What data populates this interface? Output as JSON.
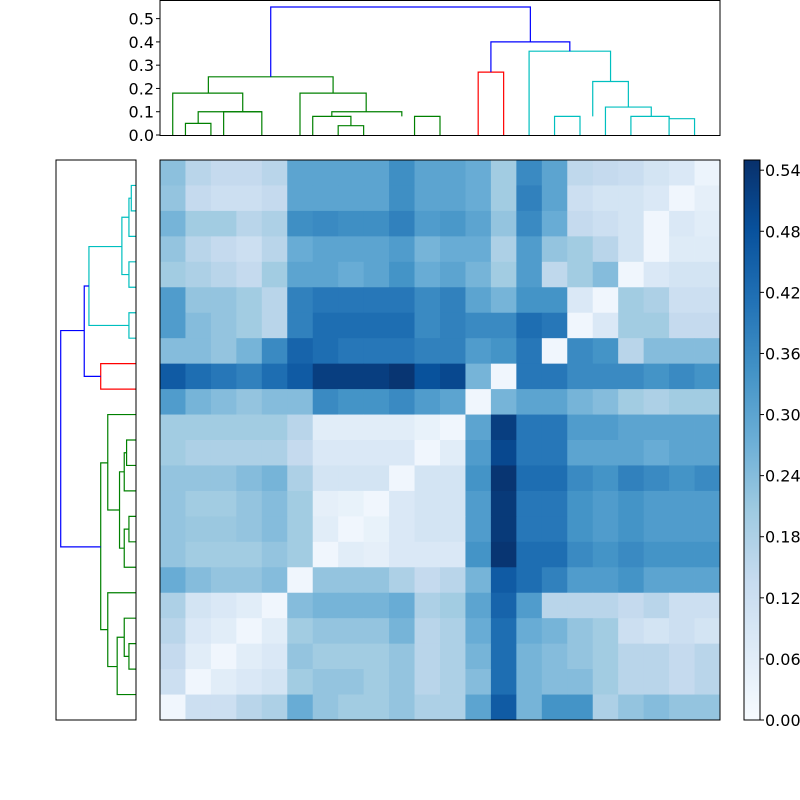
{
  "chart_data": {
    "type": "heatmap",
    "title": "",
    "colormap": "Blues",
    "n": 22,
    "top_dendrogram": {
      "axis_range": [
        0,
        0.58
      ],
      "ticks": [
        "0.0",
        "0.1",
        "0.2",
        "0.3",
        "0.4",
        "0.5"
      ],
      "tick_values": [
        0,
        0.1,
        0.2,
        0.3,
        0.4,
        0.5
      ],
      "links": [
        {
          "x": [
            0.5,
            0.5,
            1.5,
            1.5
          ],
          "y": [
            0,
            0.05,
            0.05,
            0
          ],
          "color": "#008000"
        },
        {
          "x": [
            2,
            2,
            3.5,
            3.5
          ],
          "y": [
            0,
            0.1,
            0.1,
            0
          ],
          "color": "#008000"
        },
        {
          "x": [
            3.5,
            3.5,
            1.0,
            1.0
          ],
          "y": [
            0.1,
            0.1,
            0.1,
            0.05
          ],
          "color": "#008000"
        },
        {
          "x": [
            0,
            0,
            2.75,
            2.75
          ],
          "y": [
            0,
            0.18,
            0.18,
            0.1
          ],
          "color": "#008000"
        },
        {
          "x": [
            6.5,
            6.5,
            7.5,
            7.5
          ],
          "y": [
            0,
            0.04,
            0.04,
            0
          ],
          "color": "#008000"
        },
        {
          "x": [
            5.5,
            5.5,
            7.0,
            7.0
          ],
          "y": [
            0,
            0.08,
            0.08,
            0.04
          ],
          "color": "#008000"
        },
        {
          "x": [
            9.5,
            9.5,
            10.5,
            10.5
          ],
          "y": [
            0,
            0.08,
            0.08,
            0
          ],
          "color": "#008000"
        },
        {
          "x": [
            6.25,
            6.25,
            9.0,
            9.0
          ],
          "y": [
            0.08,
            0.1,
            0.1,
            0.08
          ],
          "color": "#008000"
        },
        {
          "x": [
            5,
            5,
            7.6,
            7.6
          ],
          "y": [
            0,
            0.18,
            0.18,
            0.1
          ],
          "color": "#008000"
        },
        {
          "x": [
            1.4,
            1.4,
            6.3,
            6.3
          ],
          "y": [
            0.18,
            0.25,
            0.25,
            0.18
          ],
          "color": "#008000"
        },
        {
          "x": [
            12,
            12,
            13,
            13
          ],
          "y": [
            0,
            0.27,
            0.27,
            0
          ],
          "color": "#ff0000"
        },
        {
          "x": [
            15,
            15,
            16,
            16
          ],
          "y": [
            0,
            0.08,
            0.08,
            0
          ],
          "color": "#00bfbf"
        },
        {
          "x": [
            18,
            18,
            19.5,
            19.5
          ],
          "y": [
            0,
            0.08,
            0.08,
            0
          ],
          "color": "#00bfbf"
        },
        {
          "x": [
            19.5,
            19.5,
            20.5,
            20.5
          ],
          "y": [
            0.08,
            0.07,
            0.07,
            0
          ],
          "color": "#00bfbf"
        },
        {
          "x": [
            17,
            17,
            18.8,
            18.8
          ],
          "y": [
            0,
            0.12,
            0.12,
            0.08
          ],
          "color": "#00bfbf"
        },
        {
          "x": [
            16.5,
            16.5,
            17.9,
            17.9
          ],
          "y": [
            0.08,
            0.23,
            0.23,
            0.12
          ],
          "color": "#00bfbf"
        },
        {
          "x": [
            14,
            14,
            17.2,
            17.2
          ],
          "y": [
            0,
            0.36,
            0.36,
            0.23
          ],
          "color": "#00bfbf"
        },
        {
          "x": [
            12.5,
            12.5,
            15.6,
            15.6
          ],
          "y": [
            0.27,
            0.4,
            0.4,
            0.36
          ],
          "color": "#0000ff"
        },
        {
          "x": [
            3.85,
            3.85,
            14.05,
            14.05
          ],
          "y": [
            0.25,
            0.55,
            0.55,
            0.4
          ],
          "color": "#0000ff"
        }
      ]
    },
    "left_dendrogram": {
      "links": [
        {
          "y": [
            0.5,
            0.5,
            1.5,
            1.5
          ],
          "d": [
            0,
            0.02,
            0.02,
            0
          ],
          "color": "#00bfbf"
        },
        {
          "y": [
            1.0,
            1.0,
            2.5,
            2.5
          ],
          "d": [
            0.02,
            0.03,
            0.03,
            0
          ],
          "color": "#00bfbf"
        },
        {
          "y": [
            3.5,
            3.5,
            4.5,
            4.5
          ],
          "d": [
            0,
            0.03,
            0.03,
            0
          ],
          "color": "#00bfbf"
        },
        {
          "y": [
            1.75,
            1.75,
            4.0,
            4.0
          ],
          "d": [
            0.03,
            0.06,
            0.06,
            0.03
          ],
          "color": "#00bfbf"
        },
        {
          "y": [
            5.5,
            5.5,
            6.5,
            6.5
          ],
          "d": [
            0,
            0.03,
            0.03,
            0
          ],
          "color": "#00bfbf"
        },
        {
          "y": [
            2.9,
            2.9,
            6.0,
            6.0
          ],
          "d": [
            0.06,
            0.2,
            0.2,
            0.03
          ],
          "color": "#00bfbf"
        },
        {
          "y": [
            7.5,
            7.5,
            8.5,
            8.5
          ],
          "d": [
            0,
            0.15,
            0.15,
            0
          ],
          "color": "#ff0000"
        },
        {
          "y": [
            4.45,
            4.45,
            8.0,
            8.0
          ],
          "d": [
            0.2,
            0.22,
            0.22,
            0.15
          ],
          "color": "#0000ff"
        },
        {
          "y": [
            10.5,
            10.5,
            11.5,
            11.5
          ],
          "d": [
            0,
            0.04,
            0.04,
            0
          ],
          "color": "#008000"
        },
        {
          "y": [
            11.0,
            11.0,
            12.5,
            12.5
          ],
          "d": [
            0.04,
            0.05,
            0.05,
            0
          ],
          "color": "#008000"
        },
        {
          "y": [
            13.5,
            13.5,
            14.5,
            14.5
          ],
          "d": [
            0,
            0.03,
            0.03,
            0
          ],
          "color": "#008000"
        },
        {
          "y": [
            14.0,
            14.0,
            15.5,
            15.5
          ],
          "d": [
            0.03,
            0.05,
            0.05,
            0
          ],
          "color": "#008000"
        },
        {
          "y": [
            11.75,
            11.75,
            14.75,
            14.75
          ],
          "d": [
            0.05,
            0.07,
            0.07,
            0.05
          ],
          "color": "#008000"
        },
        {
          "y": [
            9.5,
            9.5,
            13.25,
            13.25
          ],
          "d": [
            0,
            0.12,
            0.12,
            0.07
          ],
          "color": "#008000"
        },
        {
          "y": [
            18.5,
            18.5,
            19.5,
            19.5
          ],
          "d": [
            0,
            0.03,
            0.03,
            0
          ],
          "color": "#008000"
        },
        {
          "y": [
            17.5,
            17.5,
            19.0,
            19.0
          ],
          "d": [
            0,
            0.05,
            0.05,
            0.03
          ],
          "color": "#008000"
        },
        {
          "y": [
            18.25,
            18.25,
            20.5,
            20.5
          ],
          "d": [
            0.05,
            0.08,
            0.08,
            0
          ],
          "color": "#008000"
        },
        {
          "y": [
            16.5,
            16.5,
            19.4,
            19.4
          ],
          "d": [
            0,
            0.12,
            0.12,
            0.08
          ],
          "color": "#008000"
        },
        {
          "y": [
            11.4,
            11.4,
            17.95,
            17.95
          ],
          "d": [
            0.12,
            0.15,
            0.15,
            0.12
          ],
          "color": "#008000"
        },
        {
          "y": [
            6.2,
            6.2,
            14.7,
            14.7
          ],
          "d": [
            0.22,
            0.32,
            0.32,
            0.15
          ],
          "color": "#0000ff"
        }
      ]
    },
    "matrix": [
      [
        0.23,
        0.16,
        0.14,
        0.14,
        0.16,
        0.3,
        0.3,
        0.3,
        0.3,
        0.35,
        0.3,
        0.3,
        0.28,
        0.2,
        0.36,
        0.3,
        0.15,
        0.14,
        0.13,
        0.1,
        0.08,
        0.03
      ],
      [
        0.22,
        0.14,
        0.12,
        0.12,
        0.14,
        0.3,
        0.3,
        0.3,
        0.3,
        0.35,
        0.3,
        0.3,
        0.28,
        0.2,
        0.38,
        0.3,
        0.12,
        0.1,
        0.1,
        0.08,
        0.02,
        0.05
      ],
      [
        0.26,
        0.2,
        0.2,
        0.16,
        0.18,
        0.35,
        0.36,
        0.35,
        0.35,
        0.38,
        0.32,
        0.33,
        0.3,
        0.22,
        0.36,
        0.28,
        0.14,
        0.12,
        0.1,
        0.02,
        0.08,
        0.06
      ],
      [
        0.22,
        0.16,
        0.14,
        0.12,
        0.16,
        0.28,
        0.3,
        0.3,
        0.3,
        0.32,
        0.26,
        0.28,
        0.28,
        0.18,
        0.32,
        0.22,
        0.2,
        0.16,
        0.1,
        0.02,
        0.07,
        0.07
      ],
      [
        0.2,
        0.18,
        0.16,
        0.14,
        0.2,
        0.3,
        0.3,
        0.28,
        0.3,
        0.34,
        0.28,
        0.3,
        0.26,
        0.2,
        0.32,
        0.15,
        0.2,
        0.24,
        0.02,
        0.08,
        0.1,
        0.1
      ],
      [
        0.32,
        0.22,
        0.22,
        0.2,
        0.16,
        0.38,
        0.4,
        0.4,
        0.4,
        0.4,
        0.36,
        0.38,
        0.3,
        0.26,
        0.34,
        0.34,
        0.08,
        0.02,
        0.2,
        0.18,
        0.12,
        0.12
      ],
      [
        0.32,
        0.24,
        0.22,
        0.2,
        0.16,
        0.38,
        0.42,
        0.42,
        0.42,
        0.42,
        0.36,
        0.38,
        0.36,
        0.36,
        0.42,
        0.4,
        0.02,
        0.08,
        0.2,
        0.2,
        0.14,
        0.14
      ],
      [
        0.24,
        0.24,
        0.22,
        0.26,
        0.36,
        0.44,
        0.42,
        0.4,
        0.4,
        0.4,
        0.38,
        0.38,
        0.32,
        0.34,
        0.4,
        0.02,
        0.36,
        0.34,
        0.16,
        0.24,
        0.24,
        0.24
      ],
      [
        0.46,
        0.42,
        0.4,
        0.38,
        0.42,
        0.46,
        0.52,
        0.52,
        0.52,
        0.54,
        0.48,
        0.5,
        0.26,
        0.02,
        0.4,
        0.4,
        0.36,
        0.36,
        0.36,
        0.34,
        0.36,
        0.34
      ],
      [
        0.32,
        0.26,
        0.24,
        0.22,
        0.24,
        0.24,
        0.36,
        0.34,
        0.34,
        0.36,
        0.32,
        0.3,
        0.02,
        0.26,
        0.3,
        0.3,
        0.26,
        0.24,
        0.2,
        0.18,
        0.2,
        0.2
      ],
      [
        0.2,
        0.2,
        0.2,
        0.2,
        0.2,
        0.16,
        0.06,
        0.06,
        0.06,
        0.06,
        0.04,
        0.02,
        0.3,
        0.52,
        0.4,
        0.4,
        0.32,
        0.32,
        0.3,
        0.3,
        0.3,
        0.3
      ],
      [
        0.2,
        0.18,
        0.18,
        0.18,
        0.18,
        0.14,
        0.08,
        0.08,
        0.08,
        0.08,
        0.02,
        0.06,
        0.32,
        0.5,
        0.4,
        0.4,
        0.3,
        0.3,
        0.3,
        0.28,
        0.3,
        0.3
      ],
      [
        0.22,
        0.22,
        0.22,
        0.24,
        0.26,
        0.18,
        0.1,
        0.1,
        0.1,
        0.02,
        0.1,
        0.1,
        0.34,
        0.54,
        0.42,
        0.42,
        0.36,
        0.34,
        0.38,
        0.36,
        0.34,
        0.36
      ],
      [
        0.22,
        0.2,
        0.2,
        0.22,
        0.24,
        0.2,
        0.05,
        0.04,
        0.02,
        0.08,
        0.1,
        0.1,
        0.32,
        0.53,
        0.4,
        0.4,
        0.34,
        0.32,
        0.34,
        0.32,
        0.32,
        0.32
      ],
      [
        0.22,
        0.21,
        0.21,
        0.22,
        0.24,
        0.2,
        0.06,
        0.02,
        0.04,
        0.08,
        0.1,
        0.1,
        0.32,
        0.53,
        0.4,
        0.4,
        0.34,
        0.32,
        0.34,
        0.32,
        0.32,
        0.32
      ],
      [
        0.22,
        0.2,
        0.2,
        0.2,
        0.22,
        0.2,
        0.02,
        0.06,
        0.05,
        0.08,
        0.08,
        0.08,
        0.34,
        0.54,
        0.42,
        0.42,
        0.36,
        0.34,
        0.36,
        0.34,
        0.34,
        0.34
      ],
      [
        0.28,
        0.24,
        0.22,
        0.22,
        0.24,
        0.02,
        0.22,
        0.22,
        0.22,
        0.18,
        0.14,
        0.16,
        0.26,
        0.46,
        0.42,
        0.38,
        0.32,
        0.32,
        0.34,
        0.3,
        0.3,
        0.3
      ],
      [
        0.18,
        0.1,
        0.08,
        0.06,
        0.02,
        0.24,
        0.26,
        0.26,
        0.26,
        0.28,
        0.18,
        0.2,
        0.3,
        0.44,
        0.32,
        0.16,
        0.16,
        0.16,
        0.14,
        0.16,
        0.12,
        0.12
      ],
      [
        0.16,
        0.08,
        0.06,
        0.02,
        0.06,
        0.2,
        0.22,
        0.22,
        0.22,
        0.26,
        0.16,
        0.18,
        0.28,
        0.42,
        0.28,
        0.26,
        0.22,
        0.2,
        0.12,
        0.1,
        0.12,
        0.1
      ],
      [
        0.14,
        0.06,
        0.02,
        0.06,
        0.08,
        0.22,
        0.2,
        0.2,
        0.2,
        0.22,
        0.16,
        0.18,
        0.26,
        0.42,
        0.26,
        0.24,
        0.22,
        0.2,
        0.16,
        0.16,
        0.14,
        0.16
      ],
      [
        0.12,
        0.02,
        0.06,
        0.08,
        0.1,
        0.2,
        0.22,
        0.22,
        0.2,
        0.22,
        0.16,
        0.18,
        0.24,
        0.42,
        0.26,
        0.24,
        0.24,
        0.2,
        0.16,
        0.16,
        0.14,
        0.16
      ],
      [
        0.02,
        0.12,
        0.12,
        0.16,
        0.18,
        0.28,
        0.22,
        0.2,
        0.2,
        0.22,
        0.18,
        0.18,
        0.3,
        0.46,
        0.26,
        0.34,
        0.34,
        0.18,
        0.22,
        0.24,
        0.22,
        0.22
      ]
    ],
    "colorbar": {
      "range": [
        0,
        0.55
      ],
      "ticks": [
        "0.00",
        "0.06",
        "0.12",
        "0.18",
        "0.24",
        "0.30",
        "0.36",
        "0.42",
        "0.48",
        "0.54"
      ],
      "tick_values": [
        0,
        0.06,
        0.12,
        0.18,
        0.24,
        0.3,
        0.36,
        0.42,
        0.48,
        0.54
      ]
    }
  }
}
